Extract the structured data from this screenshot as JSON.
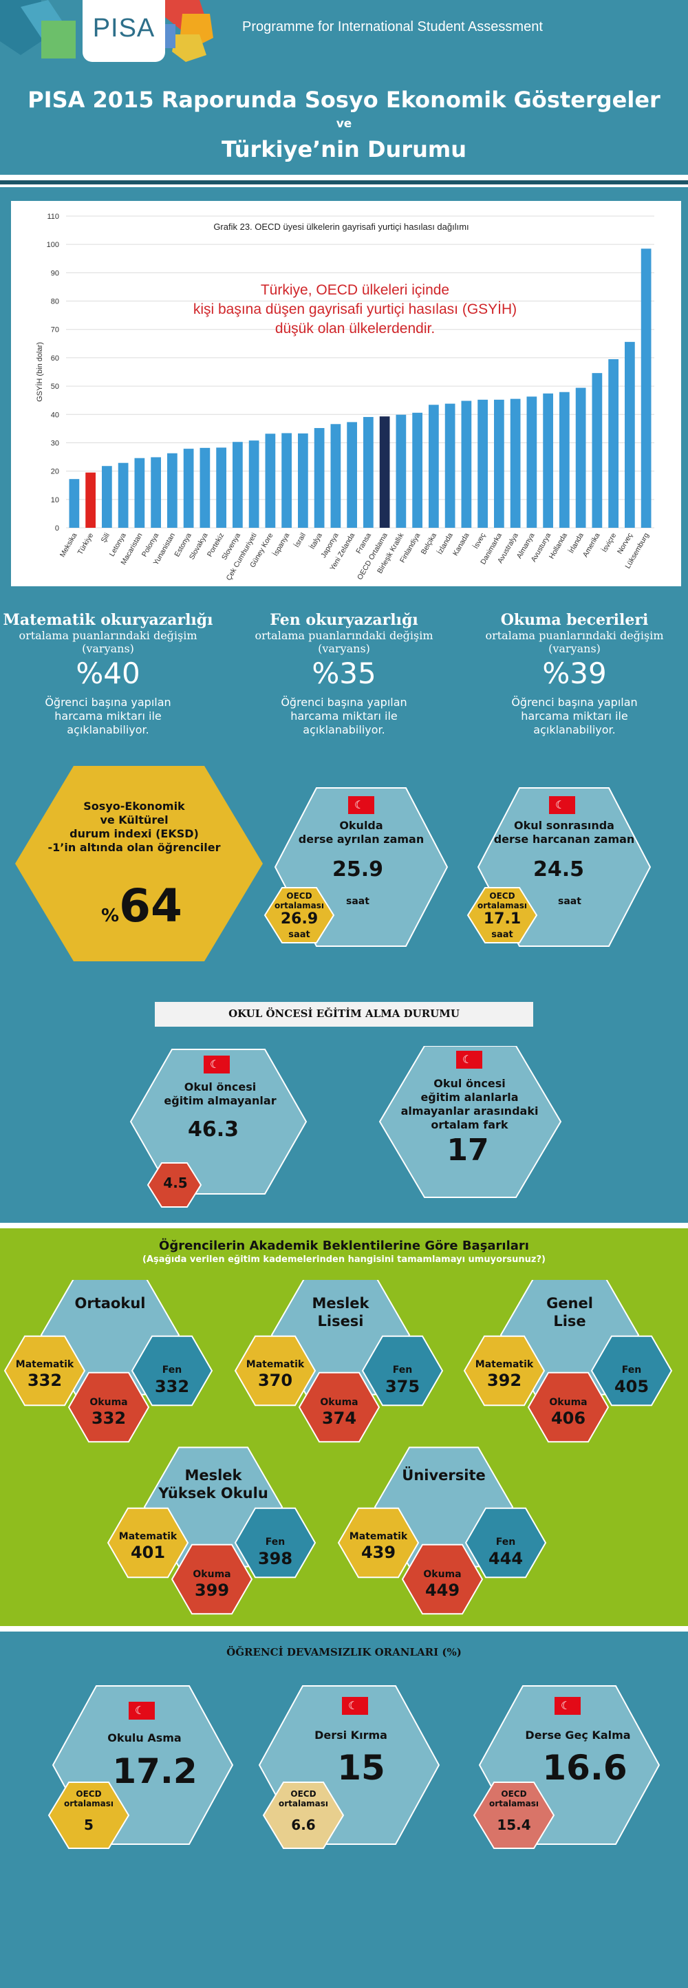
{
  "header": {
    "logo_text": "PISA",
    "programme": "Programme for International Student Assessment",
    "title_line1": "PISA 2015 Raporunda Sosyo Ekonomik Göstergeler",
    "title_ve": "ve",
    "title_line2": "Türkiye’nin Durumu"
  },
  "colors": {
    "background": "#3b8fa7",
    "bar_default": "#3a9ad6",
    "bar_turkey": "#e0241f",
    "bar_oecd_avg": "#1c2c55",
    "hex_light": "#7db9c9",
    "hex_yellow": "#e6b92a",
    "hex_red": "#d4452f",
    "hex_teal": "#2e8aa5",
    "green_band": "#8fbd1e"
  },
  "chart_data": {
    "type": "bar",
    "title": "Grafik 23. OECD üyesi ülkelerin gayrisafi yurtiçi hasılası dağılımı",
    "annotation": "Türkiye, OECD ülkeleri içinde kişi başına düşen gayrisafi yurtiçi hasılası (GSYİH) düşük olan ülkelerdendir.",
    "annotation_lines": [
      "Türkiye, OECD ülkeleri içinde",
      "kişi başına düşen gayrisafi yurtiçi hasılası (GSYİH)",
      "düşük olan ülkelerdendir."
    ],
    "ylabel": "GSYİH (bin dolar)",
    "ylim": [
      0,
      110
    ],
    "yticks": [
      0,
      10,
      20,
      30,
      40,
      50,
      60,
      70,
      80,
      90,
      100,
      110
    ],
    "grid": true,
    "categories": [
      "Meksika",
      "Türkiye",
      "Şili",
      "Letonya",
      "Macaristan",
      "Polonya",
      "Yunanistan",
      "Estonya",
      "Slovakya",
      "Portekiz",
      "Slovenya",
      "Çek Cumhuriyeti",
      "Güney Kore",
      "İspanya",
      "İsrail",
      "İtalya",
      "Japonya",
      "Yeni Zelanda",
      "Fransa",
      "OECD Ortalama",
      "Birleşik Krallık",
      "Finlandiya",
      "Belçika",
      "İzlanda",
      "Kanada",
      "İsveç",
      "Danimarka",
      "Avustralya",
      "Almanya",
      "Avusturya",
      "Hollanda",
      "İrlanda",
      "Amerika",
      "İsviçre",
      "Norveç",
      "Lüksemburg"
    ],
    "values": [
      17.2,
      19.5,
      21.8,
      22.9,
      24.6,
      24.9,
      26.3,
      27.9,
      28.2,
      28.3,
      30.3,
      30.8,
      33.2,
      33.4,
      33.3,
      35.2,
      36.6,
      37.3,
      39.1,
      39.3,
      39.9,
      40.6,
      43.4,
      43.8,
      44.8,
      45.2,
      45.2,
      45.5,
      46.3,
      47.4,
      47.9,
      49.4,
      54.6,
      59.5,
      65.6,
      98.5
    ],
    "highlight": {
      "Türkiye": "bar_turkey",
      "OECD Ortalama": "bar_oecd_avg"
    }
  },
  "stats": [
    {
      "title": "Matematik okuryazarlığı",
      "sub1": "ortalama puanlarındaki değişim",
      "sub2": "(varyans)",
      "value": "%40",
      "desc": [
        "Öğrenci başına yapılan",
        "harcama miktarı ile",
        "açıklanabiliyor."
      ]
    },
    {
      "title": "Fen okuryazarlığı",
      "sub1": "ortalama puanlarındaki değişim",
      "sub2": "(varyans)",
      "value": "%35",
      "desc": [
        "Öğrenci başına yapılan",
        "harcama miktarı ile",
        "açıklanabiliyor."
      ]
    },
    {
      "title": "Okuma becerileri",
      "sub1": "ortalama puanlarındaki değişim",
      "sub2": "(varyans)",
      "value": "%39",
      "desc": [
        "Öğrenci başına yapılan",
        "harcama miktarı ile",
        "açıklanabiliyor."
      ]
    }
  ],
  "eksd": {
    "lines": [
      "Sosyo-Ekonomik",
      "ve Kültürel",
      "durum indexi (EKSD)",
      "-1’in altında olan öğrenciler"
    ],
    "percent_sign": "%",
    "value": "64"
  },
  "school_time": {
    "label": [
      "Okulda",
      "derse ayrılan zaman"
    ],
    "value": "25.9",
    "unit": "saat",
    "oecd_label": [
      "OECD",
      "ortalaması"
    ],
    "oecd_value": "26.9",
    "oecd_unit": "saat"
  },
  "after_school": {
    "label": [
      "Okul sonrasında",
      "derse harcanan zaman"
    ],
    "value": "24.5",
    "unit": "saat",
    "oecd_label": [
      "OECD",
      "ortalaması"
    ],
    "oecd_value": "17.1",
    "oecd_unit": "saat"
  },
  "preschool": {
    "banner": "OKUL ÖNCESİ EĞİTİM ALMA DURUMU",
    "no_pre": {
      "label": [
        "Okul öncesi",
        "eğitim almayanlar"
      ],
      "value": "46.3",
      "oecd_value": "4.5"
    },
    "diff": {
      "label": [
        "Okul öncesi",
        "eğitim alanlarla",
        "almayanlar arasındaki",
        "ortalam fark"
      ],
      "value": "17"
    }
  },
  "expectations": {
    "title": "Öğrencilerin Akademik Beklentilerine Göre Başarıları",
    "subtitle": "(Aşağıda verilen eğitim kademelerinden hangisini tamamlamayı umuyorsunuz?)",
    "labels": {
      "math": "Matematik",
      "reading": "Okuma",
      "science": "Fen"
    },
    "groups": [
      {
        "name": [
          "Ortaokul"
        ],
        "math": "332",
        "reading": "332",
        "science": "332"
      },
      {
        "name": [
          "Meslek",
          "Lisesi"
        ],
        "math": "370",
        "reading": "374",
        "science": "375"
      },
      {
        "name": [
          "Genel",
          "Lise"
        ],
        "math": "392",
        "reading": "406",
        "science": "405"
      },
      {
        "name": [
          "Meslek",
          "Yüksek Okulu"
        ],
        "math": "401",
        "reading": "399",
        "science": "398"
      },
      {
        "name": [
          "Üniversite"
        ],
        "math": "439",
        "reading": "449",
        "science": "444"
      }
    ]
  },
  "absence": {
    "title": "ÖĞRENCİ DEVAMSIZLIK ORANLARI (%)",
    "oecd_label": [
      "OECD",
      "ortalaması"
    ],
    "items": [
      {
        "label": "Okulu Asma",
        "value": "17.2",
        "oecd_value": "5"
      },
      {
        "label": "Dersi Kırma",
        "value": "15",
        "oecd_value": "6.6"
      },
      {
        "label": "Derse Geç Kalma",
        "value": "16.6",
        "oecd_value": "15.4"
      }
    ]
  }
}
